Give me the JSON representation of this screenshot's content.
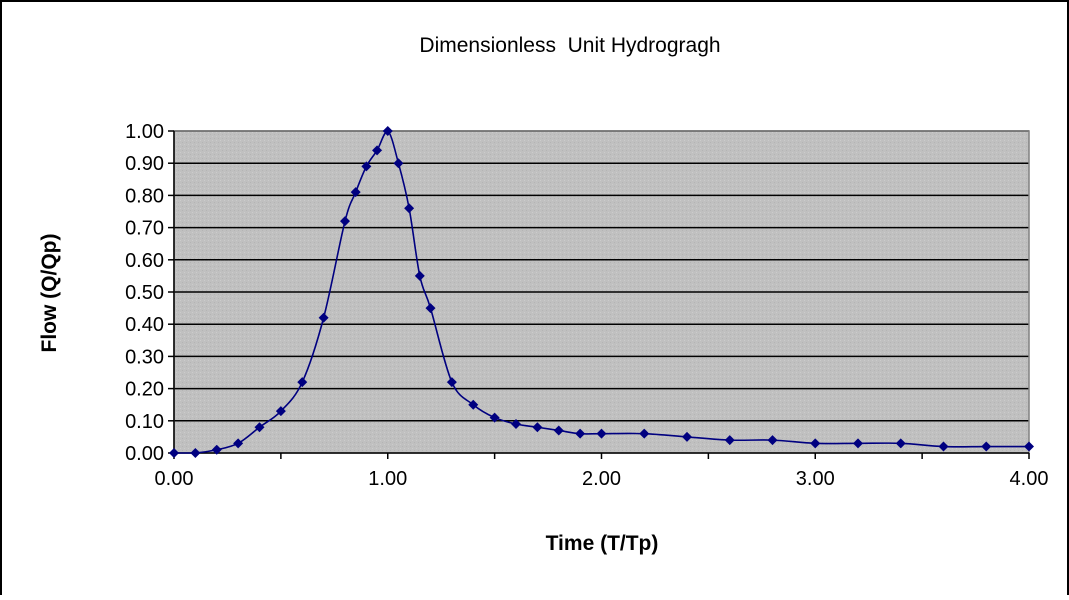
{
  "chart_data": {
    "type": "scatter-line",
    "title": "Dimensionless  Unit Hydrogragh",
    "xlabel": "Time (T/Tp)",
    "ylabel": "Flow (Q/Qp)",
    "xlim": [
      0,
      4
    ],
    "ylim": [
      0,
      1
    ],
    "x_ticks": [
      "0.00",
      "1.00",
      "2.00",
      "3.00",
      "4.00"
    ],
    "y_ticks": [
      "0.00",
      "0.10",
      "0.20",
      "0.30",
      "0.40",
      "0.50",
      "0.60",
      "0.70",
      "0.80",
      "0.90",
      "1.00"
    ],
    "grid": "horizontal",
    "legend": "none",
    "plot_background": "#c0c0c0",
    "series": [
      {
        "color": "#000080",
        "x": [
          0.0,
          0.1,
          0.2,
          0.3,
          0.4,
          0.5,
          0.6,
          0.7,
          0.8,
          0.85,
          0.9,
          0.95,
          1.0,
          1.05,
          1.1,
          1.15,
          1.2,
          1.3,
          1.4,
          1.5,
          1.6,
          1.7,
          1.8,
          1.9,
          2.0,
          2.2,
          2.4,
          2.6,
          2.8,
          3.0,
          3.2,
          3.4,
          3.6,
          3.8,
          4.0
        ],
        "y": [
          0.0,
          0.0,
          0.01,
          0.03,
          0.08,
          0.13,
          0.22,
          0.42,
          0.72,
          0.81,
          0.89,
          0.94,
          1.0,
          0.9,
          0.76,
          0.55,
          0.45,
          0.22,
          0.15,
          0.11,
          0.09,
          0.08,
          0.07,
          0.06,
          0.06,
          0.06,
          0.05,
          0.04,
          0.04,
          0.03,
          0.03,
          0.03,
          0.02,
          0.02,
          0.02
        ]
      }
    ]
  }
}
